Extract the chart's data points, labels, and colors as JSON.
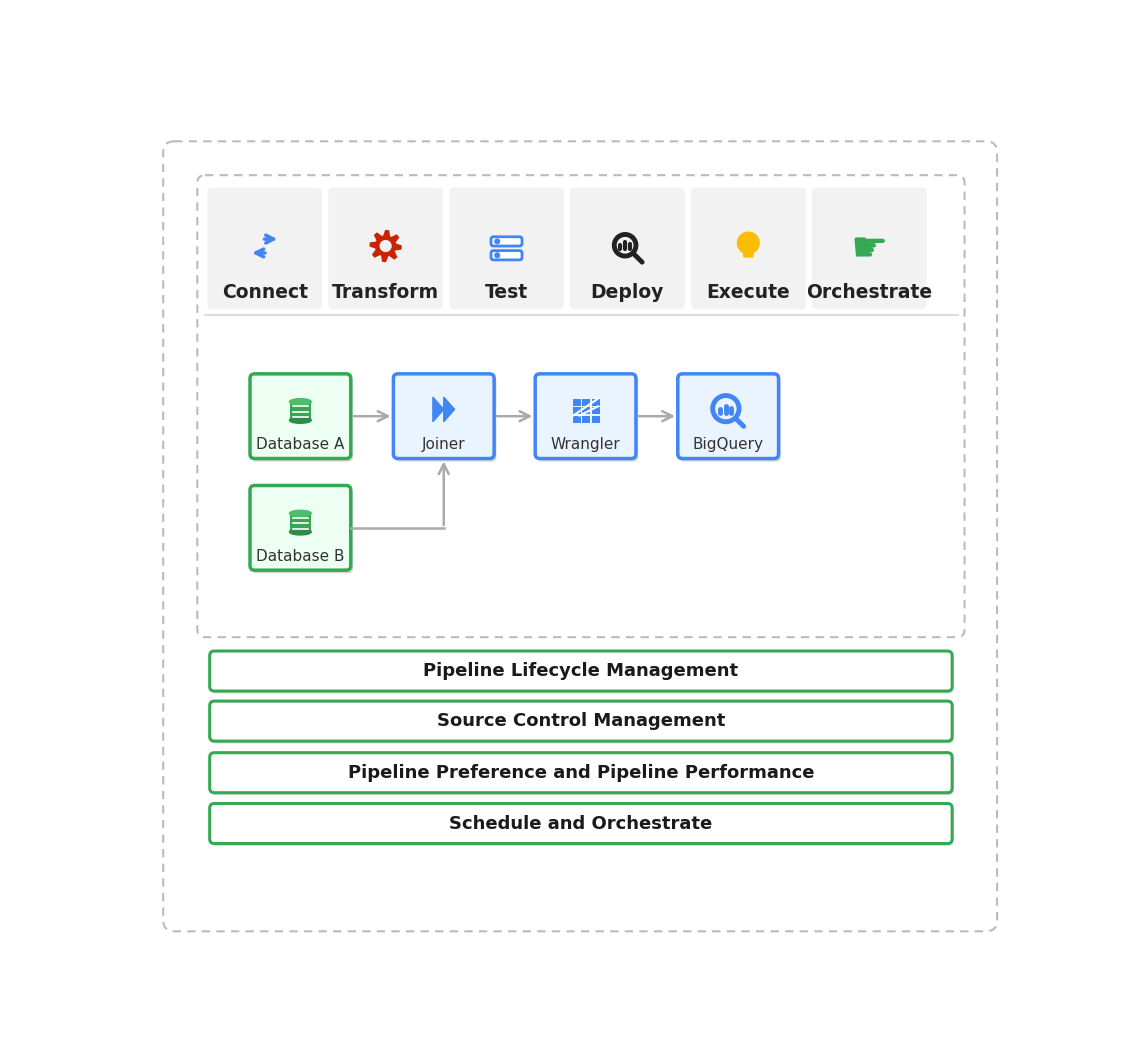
{
  "bg_color": "#ffffff",
  "green_border": "#34a853",
  "blue_border": "#4285f4",
  "step_labels": [
    "Connect",
    "Transform",
    "Test",
    "Deploy",
    "Execute",
    "Orchestrate"
  ],
  "step_icon_colors": [
    "#4285f4",
    "#cc2200",
    "#4285f4",
    "#222222",
    "#fbbc04",
    "#34a853"
  ],
  "bottom_boxes": [
    "Pipeline Lifecycle Management",
    "Source Control Management",
    "Pipeline Preference and Pipeline Performance",
    "Schedule and Orchestrate"
  ],
  "arrow_color": "#aaaaaa",
  "outer_dash_color": "#bbbbbb",
  "inner_dash_color": "#bbbbbb",
  "sep_color": "#dddddd"
}
